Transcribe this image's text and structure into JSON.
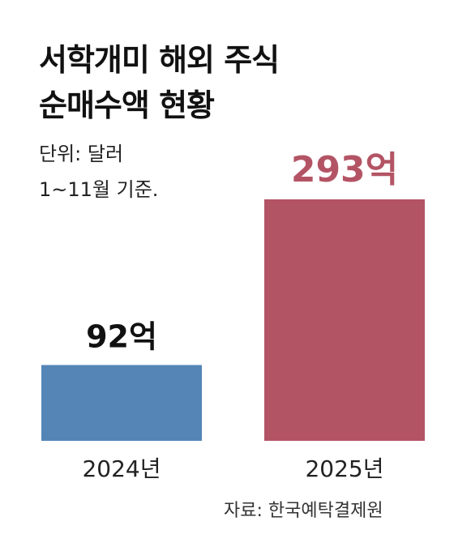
{
  "title_lines": [
    "서학개미 해외 주식",
    "순매수액 현황"
  ],
  "unit_lines": [
    "단위: 달러",
    "1~11월 기준."
  ],
  "source": "자료: 한국예탁결제원",
  "chart_data": {
    "type": "bar",
    "categories": [
      "2024년",
      "2025년"
    ],
    "values": [
      92,
      293
    ],
    "data_labels": [
      "92억",
      "293억"
    ],
    "colors": [
      "#5485b6",
      "#b35465"
    ],
    "label_colors": [
      "#111111",
      "#b35465"
    ],
    "title": "서학개미 해외 주식 순매수액 현황",
    "xlabel": "",
    "ylabel": "",
    "unit": "억 달러",
    "ylim": [
      0,
      293
    ],
    "grid": false
  }
}
